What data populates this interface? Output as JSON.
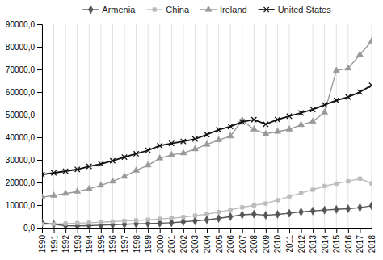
{
  "chart_data": {
    "type": "line",
    "x": [
      1990,
      1991,
      1992,
      1993,
      1994,
      1995,
      1996,
      1997,
      1998,
      1999,
      2000,
      2001,
      2002,
      2003,
      2004,
      2005,
      2006,
      2007,
      2008,
      2009,
      2010,
      2011,
      2012,
      2013,
      2014,
      2015,
      2016,
      2017,
      2018
    ],
    "series": [
      {
        "name": "Armenia",
        "color": "#555555",
        "marker": "diamond",
        "values": [
          2200,
          1500,
          900,
          800,
          900,
          1100,
          1300,
          1500,
          1700,
          1800,
          2000,
          2200,
          2600,
          3000,
          3500,
          4100,
          4900,
          5700,
          6000,
          5500,
          5900,
          6400,
          7000,
          7400,
          7800,
          8100,
          8400,
          8900,
          9700
        ]
      },
      {
        "name": "China",
        "color": "#bbbbbb",
        "marker": "square",
        "values": [
          1500,
          1600,
          1800,
          2000,
          2200,
          2400,
          2700,
          3000,
          3200,
          3500,
          3900,
          4200,
          4700,
          5300,
          6000,
          6900,
          7900,
          9000,
          9900,
          10700,
          12200,
          13800,
          15300,
          16800,
          18400,
          19500,
          20500,
          21700,
          19600
        ]
      },
      {
        "name": "Ireland",
        "color": "#999999",
        "marker": "triangle",
        "values": [
          13500,
          14200,
          15100,
          16000,
          17200,
          18700,
          20500,
          22600,
          25300,
          27600,
          30700,
          32200,
          33000,
          34800,
          36800,
          38800,
          40500,
          47500,
          43500,
          41500,
          42500,
          43500,
          45500,
          47000,
          51000,
          69500,
          70500,
          76500,
          82500
        ]
      },
      {
        "name": "United States",
        "color": "#111111",
        "marker": "x",
        "values": [
          23500,
          24200,
          25000,
          25800,
          27100,
          28200,
          29600,
          31200,
          32700,
          34200,
          36300,
          37300,
          38200,
          39200,
          41200,
          43300,
          44800,
          46800,
          47800,
          45800,
          47800,
          49300,
          50800,
          52300,
          54300,
          56300,
          57800,
          60000,
          63000
        ]
      }
    ],
    "xlim": [
      1990,
      2018
    ],
    "xticks": [
      1990,
      1991,
      1992,
      1993,
      1994,
      1995,
      1996,
      1997,
      1998,
      1999,
      2000,
      2001,
      2002,
      2003,
      2004,
      2005,
      2006,
      2007,
      2008,
      2009,
      2010,
      2011,
      2012,
      2013,
      2014,
      2015,
      2016,
      2017,
      2018
    ],
    "ylim": [
      0,
      90000
    ],
    "yticks": [
      {
        "value": 0,
        "label": "0,0"
      },
      {
        "value": 10000,
        "label": "10000,0"
      },
      {
        "value": 20000,
        "label": "20000,0"
      },
      {
        "value": 30000,
        "label": "30000,0"
      },
      {
        "value": 40000,
        "label": "40000,0"
      },
      {
        "value": 50000,
        "label": "50000,0"
      },
      {
        "value": 60000,
        "label": "60000,0"
      },
      {
        "value": 70000,
        "label": "70000,0"
      },
      {
        "value": 80000,
        "label": "80000,0"
      },
      {
        "value": 90000,
        "label": "90000,0"
      }
    ],
    "grid": "x",
    "legend": "top"
  }
}
